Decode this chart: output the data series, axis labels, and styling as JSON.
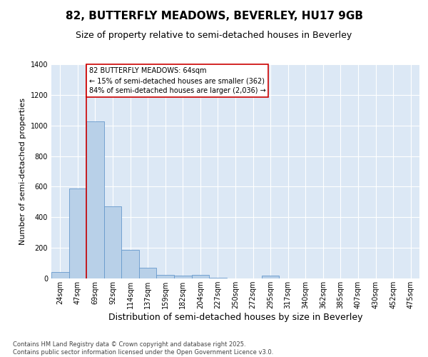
{
  "title1": "82, BUTTERFLY MEADOWS, BEVERLEY, HU17 9GB",
  "title2": "Size of property relative to semi-detached houses in Beverley",
  "xlabel": "Distribution of semi-detached houses by size in Beverley",
  "ylabel": "Number of semi-detached properties",
  "bins": [
    "24sqm",
    "47sqm",
    "69sqm",
    "92sqm",
    "114sqm",
    "137sqm",
    "159sqm",
    "182sqm",
    "204sqm",
    "227sqm",
    "250sqm",
    "272sqm",
    "295sqm",
    "317sqm",
    "340sqm",
    "362sqm",
    "385sqm",
    "407sqm",
    "430sqm",
    "452sqm",
    "475sqm"
  ],
  "values": [
    40,
    590,
    1025,
    470,
    185,
    70,
    25,
    20,
    25,
    5,
    0,
    0,
    20,
    0,
    0,
    0,
    0,
    0,
    0,
    0,
    0
  ],
  "bar_color": "#b8d0e8",
  "bar_edgecolor": "#6699cc",
  "red_line_color": "#cc0000",
  "red_line_x": 1.5,
  "annotation_text": "82 BUTTERFLY MEADOWS: 64sqm\n← 15% of semi-detached houses are smaller (362)\n84% of semi-detached houses are larger (2,036) →",
  "annotation_box_facecolor": "#ffffff",
  "annotation_box_edgecolor": "#cc0000",
  "ylim": [
    0,
    1400
  ],
  "yticks": [
    0,
    200,
    400,
    600,
    800,
    1000,
    1200,
    1400
  ],
  "plot_bg_color": "#dce8f5",
  "fig_bg_color": "#ffffff",
  "grid_color": "#ffffff",
  "footnote": "Contains HM Land Registry data © Crown copyright and database right 2025.\nContains public sector information licensed under the Open Government Licence v3.0.",
  "title1_fontsize": 11,
  "title2_fontsize": 9,
  "xlabel_fontsize": 9,
  "ylabel_fontsize": 8,
  "tick_fontsize": 7,
  "annot_fontsize": 7,
  "footnote_fontsize": 6
}
